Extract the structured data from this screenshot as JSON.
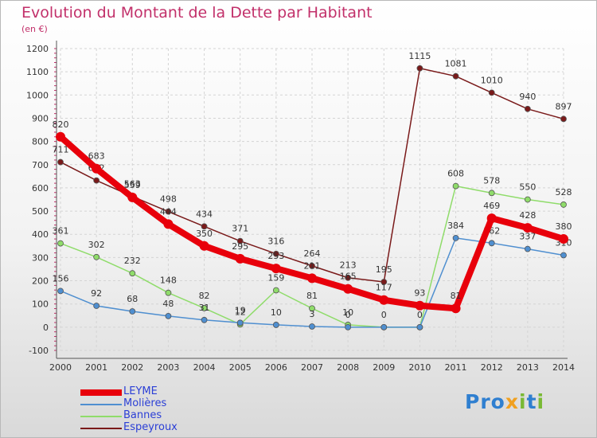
{
  "title": "Evolution du Montant de la Dette par Habitant",
  "subtitle": "(en €)",
  "logo": "Proxiti",
  "chart_data": {
    "type": "line",
    "ylim": [
      -100,
      1200
    ],
    "yticks": [
      -100,
      0,
      100,
      200,
      300,
      400,
      500,
      600,
      700,
      800,
      900,
      1000,
      1100,
      1200
    ],
    "categories": [
      "2000",
      "2001",
      "2002",
      "2003",
      "2004",
      "2005",
      "2006",
      "2007",
      "2008",
      "2009",
      "2010",
      "2011",
      "2012",
      "2013",
      "2014"
    ],
    "grid": true,
    "legend": "bottom-left",
    "series": [
      {
        "name": "Espeyroux",
        "color": "#7a1a1a",
        "values": [
          711,
          632,
          563,
          498,
          434,
          371,
          316,
          264,
          213,
          195,
          1115,
          1081,
          1010,
          940,
          897
        ],
        "labels": [
          "711",
          "632",
          "563",
          "498",
          "434",
          "371",
          "316",
          "264",
          "213",
          "195",
          "1115",
          "1081",
          "1010",
          "940",
          "897"
        ]
      },
      {
        "name": "Bannes",
        "color": "#8fdc6a",
        "values": [
          361,
          302,
          232,
          148,
          82,
          12,
          159,
          81,
          10,
          0,
          0,
          608,
          578,
          550,
          528
        ],
        "labels": [
          "361",
          "302",
          "232",
          "148",
          "82",
          "12",
          "159",
          "81",
          "10",
          "0",
          "0",
          "608",
          "578",
          "550",
          "528"
        ]
      },
      {
        "name": "Molières",
        "color": "#4f8fd0",
        "values": [
          156,
          92,
          68,
          48,
          31,
          19,
          10,
          3,
          0,
          0,
          0,
          384,
          362,
          337,
          310
        ],
        "labels": [
          "156",
          "92",
          "68",
          "48",
          "31",
          "19",
          "10",
          "3",
          "0",
          "",
          "",
          "384",
          "362",
          "337",
          "310"
        ]
      },
      {
        "name": "LEYME",
        "color": "#e8000b",
        "values": [
          820,
          683,
          559,
          444,
          350,
          295,
          253,
          211,
          165,
          117,
          93,
          81,
          469,
          428,
          380
        ],
        "labels": [
          "820",
          "683",
          "559",
          "444",
          "350",
          "295",
          "253",
          "211",
          "165",
          "117",
          "93",
          "81",
          "469",
          "428",
          "380"
        ]
      }
    ]
  }
}
